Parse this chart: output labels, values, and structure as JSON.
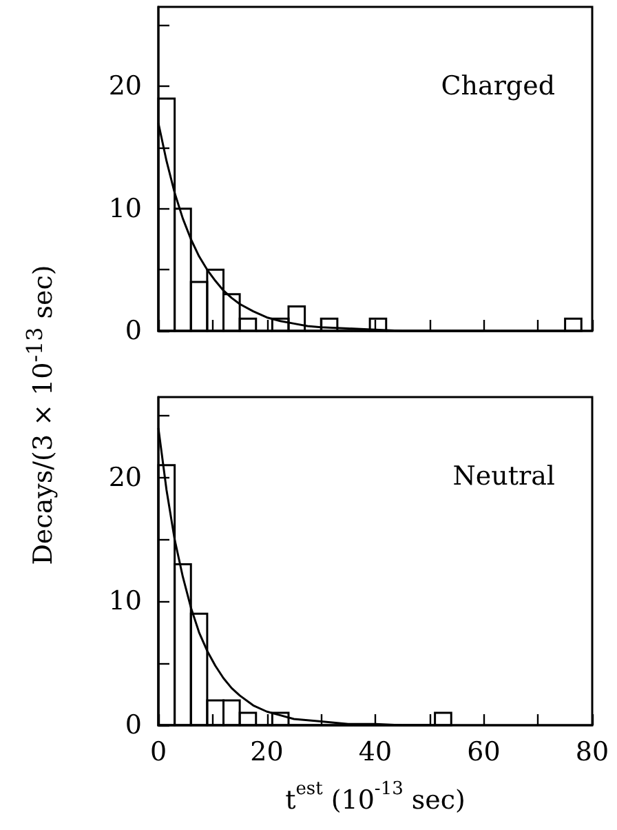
{
  "chart_data": [
    {
      "type": "histogram",
      "ylabel": "Decays/(3 × 10$^{-13}$ sec)",
      "annotations": [
        "Charged"
      ],
      "xlim": [
        0,
        80
      ],
      "ylim": [
        0,
        26.5
      ],
      "tick_labels": "y",
      "xticks": [
        0,
        {
          "value": 10,
          "label": null
        },
        20,
        {
          "value": 30,
          "label": null
        },
        40,
        {
          "value": 50,
          "label": null
        },
        60,
        {
          "value": 70,
          "label": null
        },
        80
      ],
      "yticks": [
        0,
        {
          "value": 5,
          "label": null
        },
        10,
        {
          "value": 15,
          "label": null
        },
        20,
        {
          "value": 25,
          "label": null
        }
      ],
      "series": [
        {
          "color": "#000000",
          "bins": [
            0,
            3,
            6,
            9,
            12,
            15,
            18,
            21,
            24,
            27,
            30,
            33,
            36,
            39,
            42,
            45,
            48,
            51,
            54,
            57,
            60,
            63,
            66,
            69,
            72,
            75,
            78
          ],
          "values": [
            19,
            10,
            4,
            5,
            3,
            1,
            0,
            1,
            2,
            0,
            1,
            0,
            0,
            1,
            0,
            0,
            0,
            0,
            0,
            0,
            0,
            0,
            0,
            0,
            0,
            1
          ]
        },
        {
          "type": "line",
          "color": "#000000",
          "x": [
            0,
            1.5,
            3,
            4.5,
            6,
            7.5,
            9,
            10.5,
            12,
            13.5,
            15,
            17.5,
            20,
            22.5,
            25,
            27.5,
            30,
            35,
            40,
            45,
            50,
            60
          ],
          "values": [
            17,
            13.9,
            11.3,
            9.2,
            7.5,
            6.1,
            5,
            4.1,
            3.3,
            2.7,
            2.2,
            1.6,
            1.1,
            0.8,
            0.6,
            0.4,
            0.3,
            0.2,
            0.1,
            0,
            0,
            0
          ]
        }
      ]
    },
    {
      "type": "histogram",
      "xlabel": "t$^{est}$ (10$^{-13}$ sec)",
      "annotations": [
        "Neutral"
      ],
      "xlim": [
        0,
        80
      ],
      "ylim": [
        0,
        26.5
      ],
      "xticks": [
        0,
        {
          "value": 10,
          "label": null
        },
        20,
        {
          "value": 30,
          "label": null
        },
        40,
        {
          "value": 50,
          "label": null
        },
        60,
        {
          "value": 70,
          "label": null
        },
        80
      ],
      "yticks": [
        0,
        {
          "value": 5,
          "label": null
        },
        10,
        {
          "value": 15,
          "label": null
        },
        20,
        {
          "value": 25,
          "label": null
        }
      ],
      "series": [
        {
          "color": "#000000",
          "bins": [
            0,
            3,
            6,
            9,
            12,
            15,
            18,
            21,
            24,
            27,
            30,
            33,
            36,
            39,
            42,
            45,
            48,
            51,
            54
          ],
          "values": [
            21,
            13,
            9,
            2,
            2,
            1,
            0,
            1,
            0,
            0,
            0,
            0,
            0,
            0,
            0,
            0,
            0,
            1
          ]
        },
        {
          "type": "line",
          "color": "#000000",
          "x": [
            0,
            1.5,
            3,
            4.5,
            6,
            7.5,
            9,
            10.5,
            12,
            13.5,
            15,
            17.5,
            20,
            22.5,
            25,
            27.5,
            30,
            35,
            40,
            45,
            50
          ],
          "values": [
            24,
            19,
            15,
            12,
            9.5,
            7.5,
            6,
            4.8,
            3.8,
            3,
            2.4,
            1.6,
            1.1,
            0.8,
            0.5,
            0.4,
            0.3,
            0.1,
            0.1,
            0,
            0
          ]
        }
      ]
    }
  ]
}
